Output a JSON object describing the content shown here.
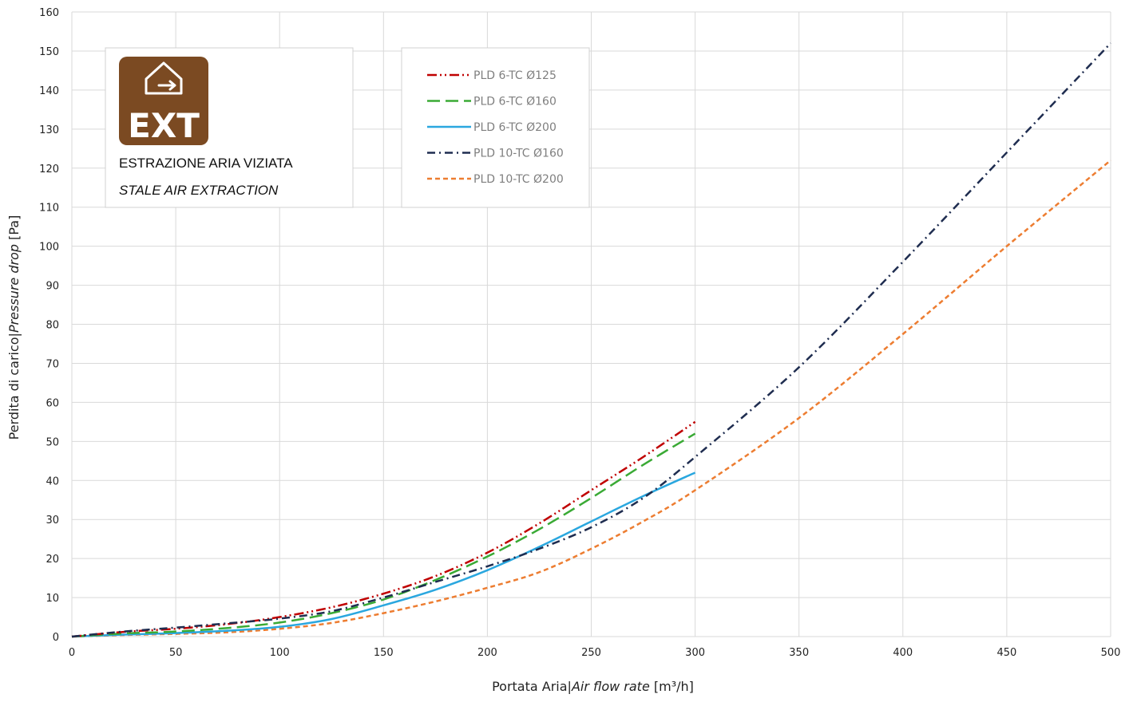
{
  "chart_data": {
    "type": "line",
    "xlabel": {
      "main": "Portata Aria",
      "sep": "|",
      "italic": "Air flow rate",
      "unit": " [m³/h]"
    },
    "ylabel": {
      "main": "Perdita di carico",
      "sep": "|",
      "italic": "Pressure drop",
      "unit": " [Pa]"
    },
    "xlim": [
      0,
      500
    ],
    "ylim": [
      0,
      160
    ],
    "xticks": [
      0,
      50,
      100,
      150,
      200,
      250,
      300,
      350,
      400,
      450,
      500
    ],
    "yticks": [
      0,
      10,
      20,
      30,
      40,
      50,
      60,
      70,
      80,
      90,
      100,
      110,
      120,
      130,
      140,
      150,
      160
    ],
    "grid": true,
    "legend_position": "top-center",
    "series": [
      {
        "name": "PLD 6-TC Ø125",
        "color": "#c00000",
        "dash": "dash-dot-dot",
        "x": [
          0,
          25,
          50,
          75,
          100,
          125,
          150,
          175,
          200,
          225,
          250,
          275,
          300
        ],
        "y": [
          0,
          1.2,
          2.0,
          3.2,
          5.0,
          7.5,
          11.0,
          15.5,
          21.5,
          29.0,
          37.5,
          46.0,
          55.0
        ]
      },
      {
        "name": "PLD 6-TC Ø160",
        "color": "#3aaa35",
        "dash": "long-dash",
        "x": [
          0,
          25,
          50,
          75,
          100,
          125,
          150,
          175,
          200,
          225,
          250,
          275,
          300
        ],
        "y": [
          0,
          0.8,
          1.3,
          2.2,
          3.6,
          6.0,
          9.5,
          14.5,
          20.5,
          27.5,
          35.5,
          44.0,
          52.0
        ]
      },
      {
        "name": "PLD 6-TC Ø200",
        "color": "#2aa7df",
        "dash": "solid",
        "x": [
          0,
          25,
          50,
          75,
          100,
          125,
          150,
          175,
          200,
          225,
          250,
          275,
          300
        ],
        "y": [
          0,
          0.5,
          0.9,
          1.5,
          2.5,
          4.5,
          8.0,
          12.0,
          17.0,
          23.0,
          29.5,
          36.0,
          42.0
        ]
      },
      {
        "name": "PLD 10-TC Ø160",
        "color": "#1f2d50",
        "dash": "dash-dot",
        "x": [
          0,
          25,
          50,
          75,
          100,
          125,
          150,
          175,
          200,
          225,
          250,
          275,
          300,
          350,
          400,
          450,
          500
        ],
        "y": [
          0,
          1.3,
          2.3,
          3.4,
          4.6,
          6.5,
          10.0,
          14.0,
          18.0,
          22.5,
          28.0,
          35.5,
          46.0,
          69.0,
          96.0,
          124.0,
          152.0
        ]
      },
      {
        "name": "PLD 10-TC Ø200",
        "color": "#ed7d31",
        "dash": "short-dash",
        "x": [
          0,
          25,
          50,
          75,
          100,
          125,
          150,
          175,
          200,
          225,
          250,
          275,
          300,
          350,
          400,
          450,
          500
        ],
        "y": [
          0,
          0.4,
          0.7,
          1.1,
          2.0,
          3.5,
          6.0,
          9.0,
          12.5,
          16.5,
          22.5,
          29.5,
          37.5,
          56.0,
          77.5,
          100.0,
          122.0
        ]
      }
    ]
  },
  "info_box": {
    "badge_text": "EXT",
    "badge_color": "#7b4a22",
    "icon": "house-exit-icon",
    "line1": "ESTRAZIONE ARIA VIZIATA",
    "line2": "STALE AIR EXTRACTION"
  }
}
